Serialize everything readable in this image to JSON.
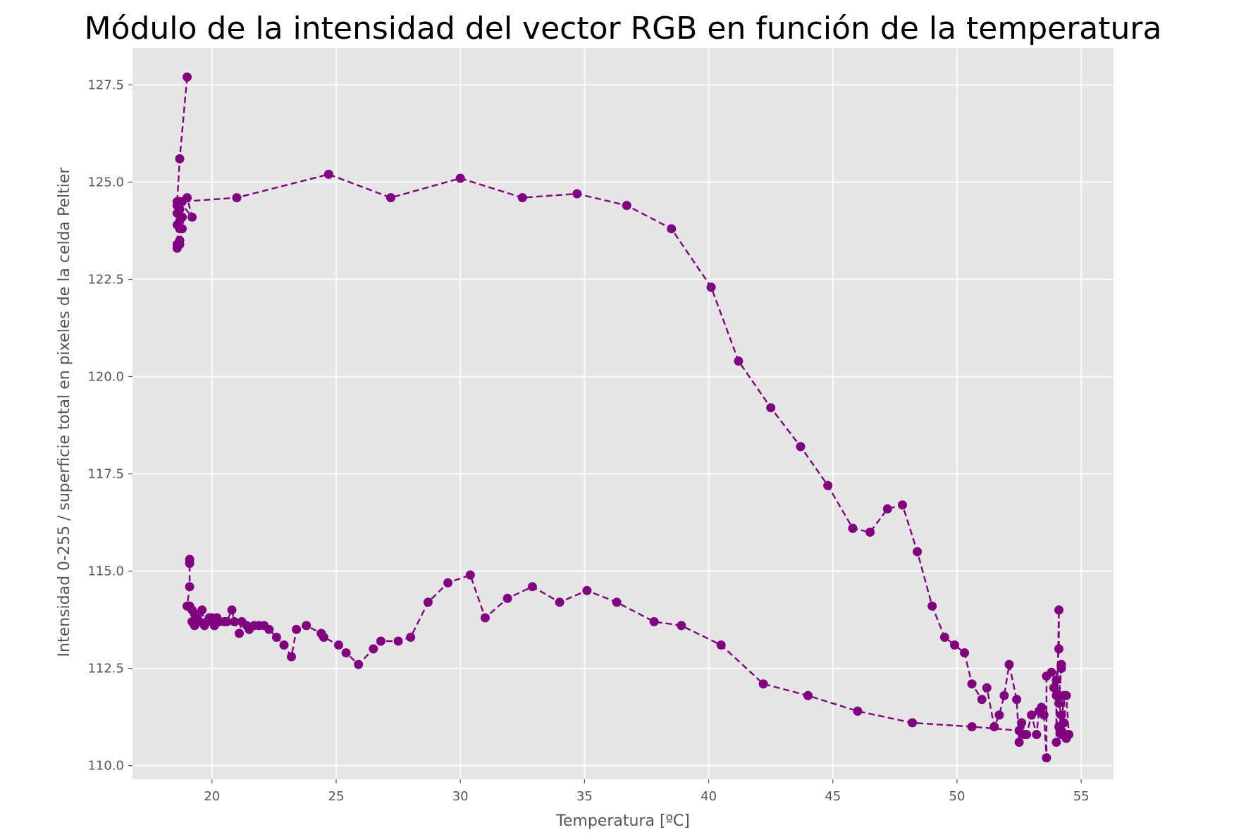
{
  "chart_data": {
    "type": "line",
    "title": "Módulo de la intensidad del vector RGB en función de la temperatura",
    "xlabel": "Temperatura [ºC]",
    "ylabel": "Intensidad 0-255 / superficie total en pixeles de la celda Peltier",
    "xlim": [
      16.8,
      56.3
    ],
    "ylim": [
      109.65,
      128.45
    ],
    "xticks": [
      20,
      25,
      30,
      35,
      40,
      45,
      50,
      55
    ],
    "yticks": [
      110.0,
      112.5,
      115.0,
      117.5,
      120.0,
      122.5,
      125.0,
      127.5
    ],
    "xtick_labels": [
      "20",
      "25",
      "30",
      "35",
      "40",
      "45",
      "50",
      "55"
    ],
    "ytick_labels": [
      "110.0",
      "112.5",
      "115.0",
      "117.5",
      "120.0",
      "122.5",
      "125.0",
      "127.5"
    ],
    "grid": true,
    "legend": "none",
    "style": {
      "line": "dashed",
      "marker": "circle",
      "color": "#800080",
      "axes_background": "#e5e5e5",
      "grid_color": "#ffffff"
    },
    "series": [
      {
        "points": [
          [
            19.0,
            127.7
          ],
          [
            18.7,
            125.6
          ],
          [
            18.6,
            124.5
          ],
          [
            18.6,
            124.4
          ],
          [
            18.7,
            124.3
          ],
          [
            18.6,
            124.2
          ],
          [
            18.8,
            124.1
          ],
          [
            18.7,
            124.0
          ],
          [
            18.6,
            123.9
          ],
          [
            18.7,
            123.8
          ],
          [
            18.8,
            123.8
          ],
          [
            18.7,
            123.5
          ],
          [
            18.7,
            123.4
          ],
          [
            18.6,
            123.3
          ],
          [
            18.6,
            123.4
          ],
          [
            18.7,
            124.5
          ],
          [
            19.2,
            124.1
          ],
          [
            19.0,
            124.6
          ],
          [
            18.8,
            124.5
          ],
          [
            21.0,
            124.6
          ],
          [
            24.7,
            125.2
          ],
          [
            27.2,
            124.6
          ],
          [
            30.0,
            125.1
          ],
          [
            32.5,
            124.6
          ],
          [
            34.7,
            124.7
          ],
          [
            36.7,
            124.4
          ],
          [
            38.5,
            123.8
          ],
          [
            40.1,
            122.3
          ],
          [
            41.2,
            120.4
          ],
          [
            42.5,
            119.2
          ],
          [
            43.7,
            118.2
          ],
          [
            44.8,
            117.2
          ],
          [
            45.8,
            116.1
          ],
          [
            46.5,
            116.0
          ],
          [
            47.2,
            116.6
          ],
          [
            47.8,
            116.7
          ],
          [
            48.4,
            115.5
          ],
          [
            49.0,
            114.1
          ],
          [
            49.5,
            113.3
          ],
          [
            49.9,
            113.1
          ],
          [
            50.3,
            112.9
          ],
          [
            50.6,
            112.1
          ],
          [
            51.0,
            111.7
          ],
          [
            51.2,
            112.0
          ],
          [
            51.5,
            111.0
          ],
          [
            51.7,
            111.3
          ],
          [
            51.9,
            111.8
          ],
          [
            52.1,
            112.6
          ],
          [
            52.4,
            111.7
          ],
          [
            52.5,
            110.6
          ],
          [
            52.6,
            111.1
          ],
          [
            52.8,
            110.8
          ],
          [
            53.0,
            111.3
          ],
          [
            53.2,
            110.8
          ],
          [
            53.3,
            111.4
          ],
          [
            53.4,
            111.5
          ],
          [
            53.5,
            111.3
          ],
          [
            53.6,
            110.2
          ],
          [
            53.6,
            112.3
          ],
          [
            53.8,
            112.4
          ],
          [
            53.9,
            112.0
          ],
          [
            54.0,
            111.8
          ],
          [
            54.0,
            110.6
          ],
          [
            54.1,
            114.0
          ],
          [
            54.1,
            113.0
          ],
          [
            54.0,
            112.2
          ],
          [
            54.1,
            111.8
          ],
          [
            54.2,
            112.6
          ],
          [
            54.2,
            112.5
          ],
          [
            54.1,
            111.6
          ],
          [
            54.2,
            111.3
          ],
          [
            54.1,
            111.0
          ],
          [
            54.2,
            110.8
          ],
          [
            54.3,
            111.1
          ],
          [
            54.2,
            110.9
          ],
          [
            54.3,
            111.8
          ],
          [
            54.4,
            110.7
          ],
          [
            54.5,
            110.8
          ],
          [
            54.4,
            111.8
          ]
        ]
      },
      {
        "points": [
          [
            19.1,
            115.2
          ],
          [
            19.1,
            115.3
          ],
          [
            19.1,
            114.6
          ],
          [
            19.0,
            114.1
          ],
          [
            19.1,
            114.1
          ],
          [
            19.2,
            114.0
          ],
          [
            19.2,
            113.7
          ],
          [
            19.3,
            113.6
          ],
          [
            19.4,
            113.8
          ],
          [
            19.3,
            113.9
          ],
          [
            19.5,
            113.7
          ],
          [
            19.6,
            114.0
          ],
          [
            19.7,
            113.6
          ],
          [
            19.8,
            113.7
          ],
          [
            19.9,
            113.8
          ],
          [
            20.0,
            113.8
          ],
          [
            20.1,
            113.6
          ],
          [
            20.2,
            113.8
          ],
          [
            20.3,
            113.7
          ],
          [
            20.5,
            113.7
          ],
          [
            20.6,
            113.7
          ],
          [
            20.8,
            114.0
          ],
          [
            20.9,
            113.7
          ],
          [
            21.1,
            113.4
          ],
          [
            21.2,
            113.7
          ],
          [
            21.4,
            113.6
          ],
          [
            21.5,
            113.5
          ],
          [
            21.7,
            113.6
          ],
          [
            21.9,
            113.6
          ],
          [
            22.1,
            113.6
          ],
          [
            22.3,
            113.5
          ],
          [
            22.6,
            113.3
          ],
          [
            22.9,
            113.1
          ],
          [
            23.2,
            112.8
          ],
          [
            23.4,
            113.5
          ],
          [
            23.8,
            113.6
          ],
          [
            24.4,
            113.4
          ],
          [
            24.5,
            113.3
          ],
          [
            25.1,
            113.1
          ],
          [
            25.4,
            112.9
          ],
          [
            25.9,
            112.6
          ],
          [
            26.5,
            113.0
          ],
          [
            26.8,
            113.2
          ],
          [
            27.5,
            113.2
          ],
          [
            28.0,
            113.3
          ],
          [
            28.7,
            114.2
          ],
          [
            29.5,
            114.7
          ],
          [
            30.4,
            114.9
          ],
          [
            31.0,
            113.8
          ],
          [
            31.9,
            114.3
          ],
          [
            32.9,
            114.6
          ],
          [
            34.0,
            114.2
          ],
          [
            35.1,
            114.5
          ],
          [
            36.3,
            114.2
          ],
          [
            37.8,
            113.7
          ],
          [
            38.9,
            113.6
          ],
          [
            40.5,
            113.1
          ],
          [
            42.2,
            112.1
          ],
          [
            44.0,
            111.8
          ],
          [
            46.0,
            111.4
          ],
          [
            48.2,
            111.1
          ],
          [
            50.6,
            111.0
          ],
          [
            52.5,
            110.9
          ],
          [
            52.7,
            110.8
          ]
        ]
      }
    ]
  }
}
